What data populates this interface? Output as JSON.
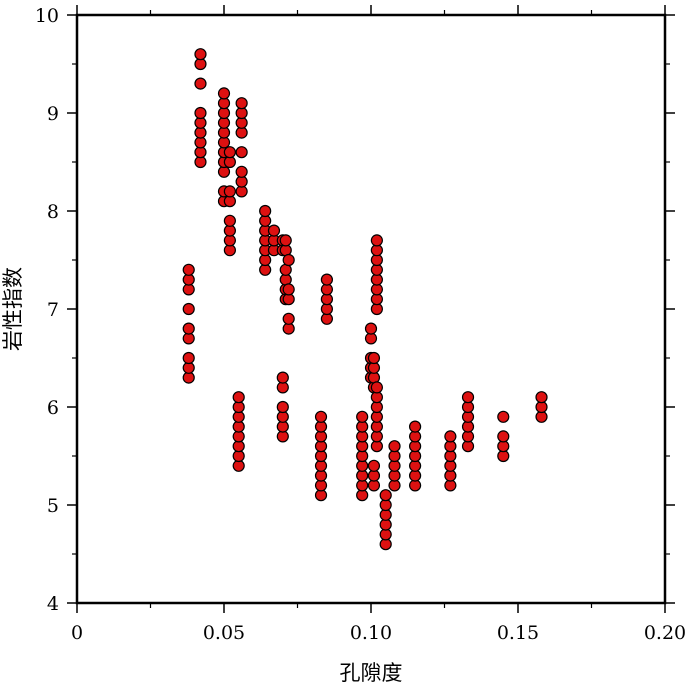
{
  "chart_data": {
    "type": "scatter",
    "xlabel": "孔隙度",
    "ylabel": "岩性指数",
    "xlim": [
      0,
      0.2
    ],
    "ylim": [
      4,
      10
    ],
    "x_ticks": [
      "0",
      "0.05",
      "0.10",
      "0.15",
      "0.20"
    ],
    "y_ticks": [
      "4",
      "5",
      "6",
      "7",
      "8",
      "9",
      "10"
    ],
    "grid": false,
    "legend": "none",
    "marker_fill": "#dd1111",
    "marker_stroke": "#000000",
    "points": [
      {
        "x": 0.038,
        "y": 6.3
      },
      {
        "x": 0.038,
        "y": 6.4
      },
      {
        "x": 0.038,
        "y": 6.5
      },
      {
        "x": 0.038,
        "y": 6.7
      },
      {
        "x": 0.038,
        "y": 6.8
      },
      {
        "x": 0.038,
        "y": 7.0
      },
      {
        "x": 0.038,
        "y": 7.2
      },
      {
        "x": 0.038,
        "y": 7.3
      },
      {
        "x": 0.038,
        "y": 7.4
      },
      {
        "x": 0.042,
        "y": 8.5
      },
      {
        "x": 0.042,
        "y": 8.6
      },
      {
        "x": 0.042,
        "y": 8.7
      },
      {
        "x": 0.042,
        "y": 8.8
      },
      {
        "x": 0.042,
        "y": 8.9
      },
      {
        "x": 0.042,
        "y": 9.0
      },
      {
        "x": 0.042,
        "y": 9.3
      },
      {
        "x": 0.042,
        "y": 9.5
      },
      {
        "x": 0.042,
        "y": 9.6
      },
      {
        "x": 0.05,
        "y": 8.1
      },
      {
        "x": 0.05,
        "y": 8.2
      },
      {
        "x": 0.05,
        "y": 8.4
      },
      {
        "x": 0.05,
        "y": 8.5
      },
      {
        "x": 0.05,
        "y": 8.6
      },
      {
        "x": 0.05,
        "y": 8.7
      },
      {
        "x": 0.05,
        "y": 8.8
      },
      {
        "x": 0.05,
        "y": 8.9
      },
      {
        "x": 0.05,
        "y": 9.0
      },
      {
        "x": 0.05,
        "y": 9.1
      },
      {
        "x": 0.05,
        "y": 9.2
      },
      {
        "x": 0.052,
        "y": 7.6
      },
      {
        "x": 0.052,
        "y": 7.7
      },
      {
        "x": 0.052,
        "y": 7.8
      },
      {
        "x": 0.052,
        "y": 7.9
      },
      {
        "x": 0.052,
        "y": 8.1
      },
      {
        "x": 0.052,
        "y": 8.2
      },
      {
        "x": 0.052,
        "y": 8.5
      },
      {
        "x": 0.052,
        "y": 8.6
      },
      {
        "x": 0.055,
        "y": 5.4
      },
      {
        "x": 0.055,
        "y": 5.5
      },
      {
        "x": 0.055,
        "y": 5.6
      },
      {
        "x": 0.055,
        "y": 5.7
      },
      {
        "x": 0.055,
        "y": 5.8
      },
      {
        "x": 0.055,
        "y": 5.9
      },
      {
        "x": 0.055,
        "y": 6.0
      },
      {
        "x": 0.055,
        "y": 6.1
      },
      {
        "x": 0.056,
        "y": 8.2
      },
      {
        "x": 0.056,
        "y": 8.3
      },
      {
        "x": 0.056,
        "y": 8.4
      },
      {
        "x": 0.056,
        "y": 8.6
      },
      {
        "x": 0.056,
        "y": 8.8
      },
      {
        "x": 0.056,
        "y": 8.9
      },
      {
        "x": 0.056,
        "y": 9.0
      },
      {
        "x": 0.056,
        "y": 9.1
      },
      {
        "x": 0.064,
        "y": 7.4
      },
      {
        "x": 0.064,
        "y": 7.5
      },
      {
        "x": 0.064,
        "y": 7.6
      },
      {
        "x": 0.064,
        "y": 7.7
      },
      {
        "x": 0.064,
        "y": 7.8
      },
      {
        "x": 0.064,
        "y": 7.9
      },
      {
        "x": 0.064,
        "y": 8.0
      },
      {
        "x": 0.067,
        "y": 7.6
      },
      {
        "x": 0.067,
        "y": 7.7
      },
      {
        "x": 0.067,
        "y": 7.8
      },
      {
        "x": 0.07,
        "y": 5.7
      },
      {
        "x": 0.07,
        "y": 5.8
      },
      {
        "x": 0.07,
        "y": 5.9
      },
      {
        "x": 0.07,
        "y": 6.0
      },
      {
        "x": 0.07,
        "y": 6.2
      },
      {
        "x": 0.07,
        "y": 6.3
      },
      {
        "x": 0.07,
        "y": 7.6
      },
      {
        "x": 0.07,
        "y": 7.7
      },
      {
        "x": 0.071,
        "y": 7.1
      },
      {
        "x": 0.071,
        "y": 7.2
      },
      {
        "x": 0.071,
        "y": 7.3
      },
      {
        "x": 0.071,
        "y": 7.4
      },
      {
        "x": 0.071,
        "y": 7.6
      },
      {
        "x": 0.071,
        "y": 7.7
      },
      {
        "x": 0.072,
        "y": 6.8
      },
      {
        "x": 0.072,
        "y": 6.9
      },
      {
        "x": 0.072,
        "y": 7.1
      },
      {
        "x": 0.072,
        "y": 7.2
      },
      {
        "x": 0.072,
        "y": 7.5
      },
      {
        "x": 0.083,
        "y": 5.1
      },
      {
        "x": 0.083,
        "y": 5.2
      },
      {
        "x": 0.083,
        "y": 5.3
      },
      {
        "x": 0.083,
        "y": 5.4
      },
      {
        "x": 0.083,
        "y": 5.5
      },
      {
        "x": 0.083,
        "y": 5.6
      },
      {
        "x": 0.083,
        "y": 5.7
      },
      {
        "x": 0.083,
        "y": 5.8
      },
      {
        "x": 0.083,
        "y": 5.9
      },
      {
        "x": 0.085,
        "y": 6.9
      },
      {
        "x": 0.085,
        "y": 7.0
      },
      {
        "x": 0.085,
        "y": 7.1
      },
      {
        "x": 0.085,
        "y": 7.2
      },
      {
        "x": 0.085,
        "y": 7.3
      },
      {
        "x": 0.097,
        "y": 5.1
      },
      {
        "x": 0.097,
        "y": 5.2
      },
      {
        "x": 0.097,
        "y": 5.3
      },
      {
        "x": 0.097,
        "y": 5.4
      },
      {
        "x": 0.097,
        "y": 5.5
      },
      {
        "x": 0.097,
        "y": 5.6
      },
      {
        "x": 0.097,
        "y": 5.7
      },
      {
        "x": 0.097,
        "y": 5.8
      },
      {
        "x": 0.097,
        "y": 5.9
      },
      {
        "x": 0.1,
        "y": 6.3
      },
      {
        "x": 0.1,
        "y": 6.4
      },
      {
        "x": 0.1,
        "y": 6.5
      },
      {
        "x": 0.1,
        "y": 6.7
      },
      {
        "x": 0.1,
        "y": 6.8
      },
      {
        "x": 0.101,
        "y": 5.2
      },
      {
        "x": 0.101,
        "y": 5.3
      },
      {
        "x": 0.101,
        "y": 5.4
      },
      {
        "x": 0.101,
        "y": 6.2
      },
      {
        "x": 0.101,
        "y": 6.3
      },
      {
        "x": 0.101,
        "y": 6.4
      },
      {
        "x": 0.101,
        "y": 6.5
      },
      {
        "x": 0.102,
        "y": 5.6
      },
      {
        "x": 0.102,
        "y": 5.7
      },
      {
        "x": 0.102,
        "y": 5.8
      },
      {
        "x": 0.102,
        "y": 5.9
      },
      {
        "x": 0.102,
        "y": 6.0
      },
      {
        "x": 0.102,
        "y": 6.1
      },
      {
        "x": 0.102,
        "y": 6.2
      },
      {
        "x": 0.102,
        "y": 7.0
      },
      {
        "x": 0.102,
        "y": 7.1
      },
      {
        "x": 0.102,
        "y": 7.2
      },
      {
        "x": 0.102,
        "y": 7.3
      },
      {
        "x": 0.102,
        "y": 7.4
      },
      {
        "x": 0.102,
        "y": 7.5
      },
      {
        "x": 0.102,
        "y": 7.6
      },
      {
        "x": 0.102,
        "y": 7.7
      },
      {
        "x": 0.105,
        "y": 4.6
      },
      {
        "x": 0.105,
        "y": 4.7
      },
      {
        "x": 0.105,
        "y": 4.8
      },
      {
        "x": 0.105,
        "y": 4.9
      },
      {
        "x": 0.105,
        "y": 5.0
      },
      {
        "x": 0.105,
        "y": 5.1
      },
      {
        "x": 0.108,
        "y": 5.2
      },
      {
        "x": 0.108,
        "y": 5.3
      },
      {
        "x": 0.108,
        "y": 5.4
      },
      {
        "x": 0.108,
        "y": 5.5
      },
      {
        "x": 0.108,
        "y": 5.6
      },
      {
        "x": 0.115,
        "y": 5.2
      },
      {
        "x": 0.115,
        "y": 5.3
      },
      {
        "x": 0.115,
        "y": 5.4
      },
      {
        "x": 0.115,
        "y": 5.5
      },
      {
        "x": 0.115,
        "y": 5.6
      },
      {
        "x": 0.115,
        "y": 5.7
      },
      {
        "x": 0.115,
        "y": 5.8
      },
      {
        "x": 0.127,
        "y": 5.2
      },
      {
        "x": 0.127,
        "y": 5.3
      },
      {
        "x": 0.127,
        "y": 5.4
      },
      {
        "x": 0.127,
        "y": 5.5
      },
      {
        "x": 0.127,
        "y": 5.6
      },
      {
        "x": 0.127,
        "y": 5.7
      },
      {
        "x": 0.133,
        "y": 5.6
      },
      {
        "x": 0.133,
        "y": 5.7
      },
      {
        "x": 0.133,
        "y": 5.8
      },
      {
        "x": 0.133,
        "y": 5.9
      },
      {
        "x": 0.133,
        "y": 6.0
      },
      {
        "x": 0.133,
        "y": 6.1
      },
      {
        "x": 0.145,
        "y": 5.5
      },
      {
        "x": 0.145,
        "y": 5.6
      },
      {
        "x": 0.145,
        "y": 5.7
      },
      {
        "x": 0.145,
        "y": 5.9
      },
      {
        "x": 0.158,
        "y": 5.9
      },
      {
        "x": 0.158,
        "y": 6.0
      },
      {
        "x": 0.158,
        "y": 6.1
      }
    ]
  }
}
